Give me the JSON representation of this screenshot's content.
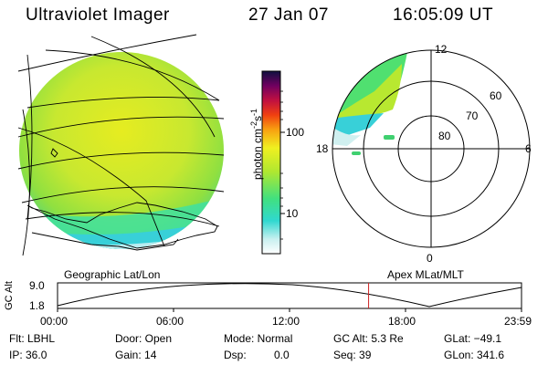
{
  "header": {
    "title": "Ultraviolet Imager",
    "date": "27 Jan 07",
    "time": "16:05:09 UT"
  },
  "colorbar": {
    "unit": "photon cm",
    "exp1": "-2",
    "s": "s",
    "exp2": "-1",
    "ticks": [
      "100",
      "10"
    ]
  },
  "polar": {
    "mlat_labels": [
      "80",
      "70",
      "60"
    ],
    "mlt_labels": [
      "12",
      "6",
      "0",
      "18"
    ]
  },
  "panels": {
    "left_caption": "Geographic Lat/Lon",
    "right_caption": "Apex  MLat/MLT"
  },
  "altitude_plot": {
    "ylabel": "GC Alt",
    "yticks": [
      "9.0",
      "1.8"
    ],
    "xticks": [
      "00:00",
      "06:00",
      "12:00",
      "18:00",
      "23:59"
    ],
    "current_time_hours": 16.09
  },
  "status": {
    "flt": "Flt: LBHL",
    "ip": "IP: 36.0",
    "door": "Door: Open",
    "gain": "Gain: 14",
    "mode": "Mode: Normal",
    "dsp_label": "Dsp:",
    "dsp_value": "0.0",
    "gc_alt": "GC Alt: 5.3 Re",
    "seq": "Seq: 39",
    "glat": "GLat: −49.1",
    "glon": "GLon: 341.6"
  },
  "colors": {
    "marker": "#cc2222",
    "earth_main": "#c8e830",
    "earth_edge": "#40e0a0",
    "auroral_band": "#38d0d8"
  }
}
